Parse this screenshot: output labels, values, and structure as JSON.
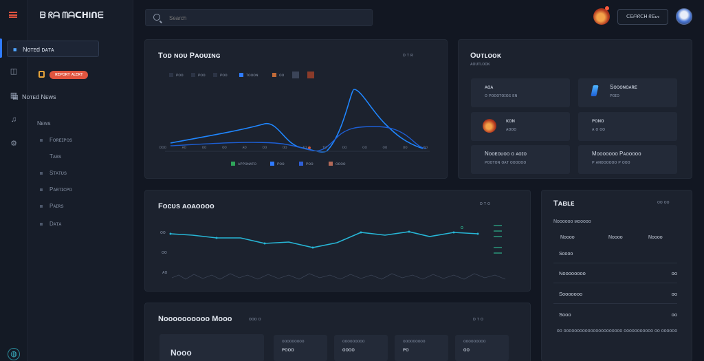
{
  "app": {
    "title": "ᗷ ᖇᗩ ᗰᗩᑕᕼIᑎᗴ",
    "brand": "ᗷ ᖇᗩ ᗰᗩᑕᕼIᑎᗴ"
  },
  "search": {
    "placeholder": "Search"
  },
  "topbar": {
    "button_label": "ᑕᗴᗩᖇᑕᕼ ᖇᗴᔕ"
  },
  "sidebar": {
    "items": [
      {
        "label": "Nᴏᴛᴇd ᴅᴀᴛᴀ"
      },
      {
        "label": "ʀᴇᴘᴏʀᴛ ᴀʟᴇʀᴛ"
      },
      {
        "label": "Nᴏᴛᴇd Nᴇᴡs"
      }
    ],
    "section_label": "Nᴇᴡs",
    "sub_items": [
      {
        "label": "Fᴏʀᴇɪᴘᴏs"
      },
      {
        "label": "Tᴀʙs"
      },
      {
        "label": "Sᴛᴀᴛᴜs"
      },
      {
        "label": "Pᴀʀᴛɪᴄᴘᴏ"
      },
      {
        "label": "Pᴀɪʀs"
      },
      {
        "label": "Dᴀᴛᴀ"
      }
    ]
  },
  "card_trend": {
    "title": "Tᴏᴅ ɴᴏᴜ Pᴀᴏᴜɪɴɢ",
    "meta": "ᴅ ᴛ ʀ",
    "top_legend": [
      "ᴘᴏᴏ",
      "ᴘᴏᴏ",
      "ᴘᴏᴏ",
      "ᴛᴏᴏᴏɴ",
      "ᴏᴏ"
    ],
    "bottom_legend": [
      "ᴀᴘᴘᴏɴᴀᴛᴏ",
      "ᴘᴏᴏ",
      "ᴘᴏᴏ",
      "ᴏᴏᴏᴏ"
    ],
    "x_ticks": [
      "ᴅᴏᴏ",
      "ᴀᴏ",
      "ᴏᴏ",
      "ᴏᴏ",
      "ᴀᴏ",
      "ᴏᴏ",
      "ᴏᴏ",
      "ᴛᴏ",
      "ᴛᴏ",
      "ᴏᴏ",
      "ᴏᴏ",
      "ᴏᴏ",
      "ᴏᴏ",
      "ᴏᴏ"
    ]
  },
  "card_summary": {
    "title": "Oᴜᴛʟᴏᴏᴋ",
    "subtitle": "ᴀᴏᴜᴛʟᴏᴏᴋ",
    "tiles": [
      {
        "t1": "ᴀᴏᴀ",
        "t2": "ᴏ ᴘᴏᴏᴏᴛᴏɪᴏs ᴇɴ"
      },
      {
        "t1": "Sᴏᴏᴏɴᴏᴀʀᴇ",
        "t2": "ᴘᴏɪᴏ"
      },
      {
        "t1": "ᴋᴏɴ",
        "t2": "ᴀᴏᴏᴏ"
      },
      {
        "t1": "ᴘᴏɴᴏ",
        "t2": "ᴀ ᴏ ᴏᴏ"
      },
      {
        "t1": "Nᴏᴏᴇᴏᴜᴏᴏ ᴏ ᴀᴏɪᴏ",
        "t2": "ᴘᴏᴏᴛᴏɴ ᴏᴀᴛ ᴏᴏᴏᴏᴏᴏ"
      },
      {
        "t1": "Mᴏᴏᴏᴏᴏᴏᴏ Pᴀᴏᴏᴏᴏᴏ",
        "t2": "ᴘ ᴀɴᴏᴏᴏᴏᴏᴏ ᴘ ᴏᴏᴏ"
      }
    ]
  },
  "card_performance": {
    "title": "Fᴏᴄᴜs ᴀᴏᴀᴏᴏᴏᴏ",
    "meta": "ᴅ ᴛ ᴏ",
    "y_ticks": [
      "ᴏᴏ",
      "ᴏᴏ",
      "ᴀᴏ"
    ],
    "label_right": "ᴏ"
  },
  "card_bottom": {
    "title": "Nᴏᴏᴏᴏᴏᴏᴏᴏᴏᴏ Mᴏᴏᴏ",
    "title_meta": "ᴏᴏᴏ ᴏ",
    "meta": "ᴅ ᴛ ᴏ",
    "tile_label": "Nᴏᴏᴏ",
    "mini_tiles": [
      {
        "label": "ᴏᴏᴏᴏᴏᴏᴏᴏᴏ",
        "value": "ᴘᴏᴏᴏ"
      },
      {
        "label": "ᴏᴏᴏᴏᴏᴏᴏᴏᴏ",
        "value": "ᴏᴏᴏᴏ"
      },
      {
        "label": "ᴏᴏᴏᴏᴏᴏᴏᴏᴏ",
        "value": "ᴘᴏ"
      },
      {
        "label": "ᴏᴏᴏᴏᴏᴏᴏᴏᴏ",
        "value": "ᴏᴏ"
      }
    ]
  },
  "card_table": {
    "title": "Tᴀʙʟᴇ",
    "meta": "ᴏᴏ ᴏᴏ",
    "subtitle": "Nᴏᴏᴏᴏᴏᴏ ᴍᴏᴏᴏᴏᴏ",
    "columns": [
      "Nᴏᴏᴏᴏ",
      "Nᴏᴏᴏᴏ",
      "Nᴏᴏᴏᴏ"
    ],
    "group": "Sᴏᴏᴏᴏ",
    "rows": [
      {
        "label": "Nᴏᴏᴏᴏᴏᴏᴏᴏ",
        "value": "ᴏᴏ"
      },
      {
        "label": "Sᴏᴏᴏᴏᴏᴏᴏ",
        "value": "ᴏᴏ"
      },
      {
        "label": "Sᴏᴏᴏ",
        "value": "ᴏᴏ"
      }
    ],
    "footer": "ᴏᴏ ᴏᴏᴏᴏᴏᴏᴏᴏᴏᴏᴏᴏᴏᴏᴏᴏᴏᴏᴏᴏᴏᴏ ᴏᴏᴏᴏᴏᴏᴏᴏᴏᴏᴏ ᴏᴏ ᴏᴏᴏᴏᴏᴏ"
  },
  "colors": {
    "accent": "#2f7bff",
    "line_primary": "#1f86ff",
    "line_secondary": "#1d5fd6",
    "line_teal": "#27b6d6",
    "badge": "#e2553f"
  },
  "icons": {
    "rail": [
      "dashboard-icon",
      "list-icon",
      "calendar-icon",
      "bell-icon",
      "settings-icon"
    ],
    "bottom": "globe-icon"
  }
}
